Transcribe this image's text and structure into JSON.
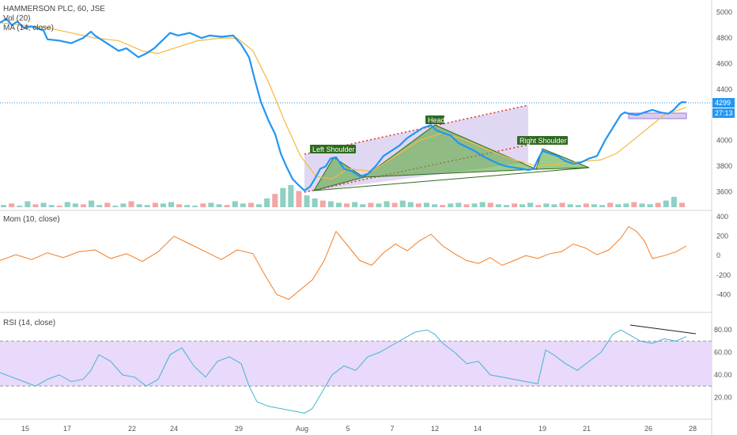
{
  "legend": {
    "title": "HAMMERSON PLC, 60, JSE",
    "vol": "Vol (20)",
    "ma": "MA (14, close)",
    "mom": "Mom (10, close)",
    "rsi": "RSI (14, close)"
  },
  "badges": {
    "last_price": "4299",
    "countdown": "27:13"
  },
  "colors": {
    "price_line": "#2196f3",
    "ma_line": "#f5b840",
    "mom_line": "#f57c20",
    "rsi_line": "#43b5cf",
    "vol_up": "#8fd0c4",
    "vol_down": "#f4a6a6",
    "pattern_fill": "#5aa83c",
    "channel_fill": "#c7b8e8",
    "channel_dots": "#e53935",
    "rsi_band": "#e9d9fb",
    "annotation_bg": "#2e6b1f"
  },
  "chart_data": [
    {
      "type": "line",
      "pane": "price",
      "title": "HAMMERSON PLC, 60, JSE",
      "ylim": [
        3480,
        5060
      ],
      "yticks": [
        3600,
        3800,
        4000,
        4200,
        4400,
        4600,
        4800,
        5000
      ],
      "x_ticks": [
        "15",
        "17",
        "22",
        "24",
        "29",
        "Aug",
        "5",
        "7",
        "12",
        "14",
        "19",
        "21",
        "26",
        "28"
      ],
      "series": [
        {
          "name": "close",
          "x": [
            0,
            8,
            15,
            22,
            30,
            40,
            55,
            60,
            75,
            90,
            105,
            115,
            120,
            135,
            150,
            160,
            175,
            185,
            195,
            205,
            215,
            225,
            240,
            255,
            265,
            280,
            295,
            305,
            315,
            322,
            330,
            340,
            348,
            355,
            362,
            370,
            378,
            385,
            392,
            398,
            405,
            412,
            418,
            425,
            435,
            445,
            455,
            465,
            475,
            485,
            495,
            505,
            515,
            525,
            535,
            545,
            552,
            560,
            570,
            580,
            590,
            600,
            610,
            620,
            630,
            640,
            650,
            660,
            668,
            675,
            680,
            686,
            695,
            705,
            715,
            725,
            735,
            745,
            755,
            765,
            775,
            785,
            790,
            795,
            805,
            815,
            825,
            835,
            845,
            852,
            858,
            862,
            868
          ],
          "values": [
            4920,
            4950,
            4900,
            4930,
            4880,
            4890,
            4860,
            4790,
            4780,
            4760,
            4800,
            4850,
            4820,
            4760,
            4700,
            4720,
            4650,
            4680,
            4720,
            4780,
            4840,
            4820,
            4840,
            4800,
            4820,
            4810,
            4820,
            4750,
            4650,
            4480,
            4300,
            4150,
            4050,
            3900,
            3800,
            3700,
            3650,
            3610,
            3640,
            3700,
            3780,
            3800,
            3860,
            3870,
            3780,
            3760,
            3720,
            3740,
            3800,
            3880,
            3920,
            3960,
            4020,
            4060,
            4100,
            4120,
            4080,
            4060,
            4040,
            3980,
            3950,
            3920,
            3880,
            3850,
            3820,
            3800,
            3790,
            3780,
            3770,
            3780,
            3850,
            3920,
            3900,
            3880,
            3840,
            3820,
            3830,
            3860,
            3880,
            4000,
            4100,
            4200,
            4220,
            4210,
            4200,
            4220,
            4240,
            4220,
            4210,
            4240,
            4280,
            4300,
            4299
          ]
        },
        {
          "name": "MA (14, close)",
          "x": [
            0,
            30,
            60,
            90,
            120,
            150,
            180,
            200,
            220,
            250,
            280,
            300,
            320,
            340,
            360,
            380,
            400,
            420,
            440,
            470,
            500,
            530,
            560,
            590,
            620,
            650,
            680,
            710,
            740,
            760,
            780,
            800,
            820,
            840,
            868
          ],
          "values": [
            4920,
            4900,
            4880,
            4840,
            4800,
            4780,
            4700,
            4680,
            4720,
            4780,
            4800,
            4800,
            4700,
            4450,
            4150,
            3880,
            3720,
            3700,
            3780,
            3760,
            3880,
            4000,
            4060,
            4000,
            3920,
            3850,
            3800,
            3820,
            3840,
            3850,
            3900,
            4000,
            4100,
            4200,
            4260
          ]
        }
      ],
      "annotations": [
        "Left Shoulder",
        "Head",
        "Right Shoulder"
      ],
      "last_price": 4299
    },
    {
      "type": "bar",
      "pane": "volume",
      "series": [
        {
          "name": "Vol (20)",
          "values": [
            3,
            5,
            2,
            8,
            4,
            6,
            3,
            2,
            7,
            5,
            4,
            9,
            3,
            6,
            2,
            5,
            8,
            4,
            3,
            6,
            5,
            7,
            4,
            3,
            2,
            5,
            6,
            4,
            3,
            8,
            5,
            6,
            4,
            12,
            18,
            26,
            30,
            22,
            16,
            12,
            9,
            8,
            6,
            5,
            7,
            4,
            6,
            5,
            8,
            6,
            9,
            7,
            5,
            6,
            4,
            3,
            5,
            6,
            4,
            5,
            7,
            6,
            4,
            3,
            5,
            4,
            6,
            3,
            5,
            4,
            6,
            4,
            3,
            5,
            4,
            3,
            6,
            4,
            5,
            7,
            5,
            4,
            6,
            9,
            14,
            6
          ]
        }
      ]
    },
    {
      "type": "line",
      "pane": "momentum",
      "title": "Mom (10, close)",
      "ylim": [
        -560,
        450
      ],
      "yticks": [
        -400,
        -200,
        0,
        200,
        400
      ],
      "series": [
        {
          "name": "Mom (10, close)",
          "x": [
            0,
            20,
            40,
            60,
            80,
            100,
            120,
            140,
            160,
            180,
            200,
            220,
            240,
            260,
            280,
            300,
            320,
            335,
            350,
            365,
            380,
            395,
            410,
            425,
            440,
            455,
            470,
            485,
            500,
            515,
            530,
            545,
            560,
            575,
            590,
            605,
            620,
            635,
            650,
            665,
            680,
            695,
            710,
            725,
            740,
            755,
            770,
            785,
            795,
            805,
            815,
            825,
            840,
            855,
            868
          ],
          "values": [
            -50,
            10,
            -40,
            30,
            -20,
            40,
            60,
            -30,
            20,
            -60,
            40,
            200,
            120,
            40,
            -40,
            60,
            20,
            -200,
            -400,
            -450,
            -350,
            -250,
            -50,
            250,
            100,
            -50,
            -100,
            30,
            120,
            50,
            150,
            220,
            100,
            20,
            -50,
            -80,
            -20,
            -100,
            -50,
            0,
            -30,
            20,
            40,
            120,
            80,
            10,
            60,
            180,
            300,
            250,
            150,
            -30,
            0,
            40,
            100
          ]
        }
      ]
    },
    {
      "type": "line",
      "pane": "rsi",
      "title": "RSI (14, close)",
      "ylim": [
        2,
        92
      ],
      "yticks": [
        20,
        40,
        60,
        80
      ],
      "band": [
        30,
        70
      ],
      "series": [
        {
          "name": "RSI (14, close)",
          "x": [
            0,
            15,
            30,
            45,
            60,
            75,
            90,
            105,
            115,
            125,
            140,
            155,
            170,
            185,
            200,
            215,
            230,
            245,
            260,
            275,
            290,
            305,
            315,
            325,
            340,
            355,
            370,
            385,
            395,
            405,
            420,
            435,
            450,
            465,
            480,
            495,
            510,
            525,
            540,
            550,
            560,
            575,
            590,
            605,
            620,
            635,
            650,
            665,
            680,
            690,
            700,
            715,
            730,
            745,
            760,
            775,
            785,
            795,
            810,
            825,
            840,
            855,
            868
          ],
          "values": [
            42,
            38,
            34,
            30,
            36,
            40,
            34,
            36,
            44,
            58,
            52,
            40,
            38,
            30,
            36,
            58,
            64,
            48,
            38,
            52,
            56,
            50,
            30,
            16,
            12,
            10,
            8,
            6,
            10,
            22,
            40,
            48,
            44,
            56,
            60,
            66,
            72,
            78,
            80,
            76,
            68,
            60,
            50,
            52,
            40,
            38,
            36,
            34,
            32,
            62,
            58,
            50,
            44,
            52,
            60,
            76,
            80,
            76,
            70,
            68,
            72,
            70,
            74
          ]
        }
      ],
      "trendline": "divergence"
    }
  ]
}
